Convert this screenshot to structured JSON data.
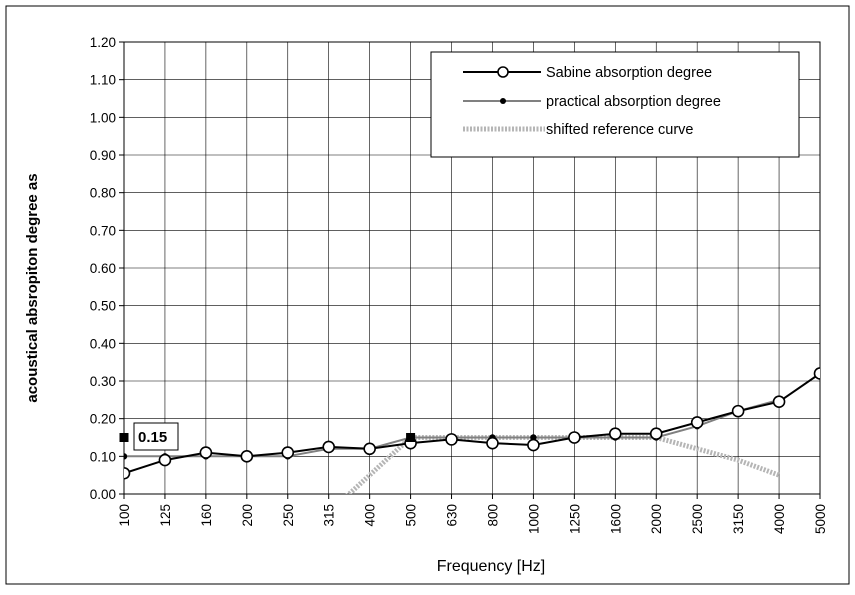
{
  "chart_data": {
    "type": "line",
    "x_axis_type": "category",
    "categories": [
      "100",
      "125",
      "160",
      "200",
      "250",
      "315",
      "400",
      "500",
      "630",
      "800",
      "1000",
      "1250",
      "1600",
      "2000",
      "2500",
      "3150",
      "4000",
      "5000"
    ],
    "xlabel": "Frequency  [Hz]",
    "ylabel": "acoustical absropiton degree as",
    "ylim": [
      0,
      1.2
    ],
    "yticks": [
      "0.00",
      "0.10",
      "0.20",
      "0.30",
      "0.40",
      "0.50",
      "0.60",
      "0.70",
      "0.80",
      "0.90",
      "1.00",
      "1.10",
      "1.20"
    ],
    "grid": true,
    "legend_position": "top-right",
    "series": [
      {
        "name": "Sabine absorption degree",
        "color": "#000000",
        "marker": "open-circle",
        "values": [
          0.055,
          0.09,
          0.11,
          0.1,
          0.11,
          0.125,
          0.12,
          0.135,
          0.145,
          0.135,
          0.13,
          0.15,
          0.16,
          0.16,
          0.19,
          0.22,
          0.245,
          0.32
        ]
      },
      {
        "name": "practical absorption degree",
        "color": "#808080",
        "marker": "dot",
        "values": [
          0.1,
          0.1,
          0.1,
          0.1,
          0.1,
          0.12,
          0.12,
          0.15,
          0.15,
          0.15,
          0.15,
          0.15,
          0.15,
          0.15,
          0.18,
          0.22,
          0.25,
          null
        ]
      },
      {
        "name": "shifted reference curve",
        "color": "#b5b5b5",
        "marker": "none",
        "values": [
          null,
          null,
          null,
          null,
          null,
          -0.05,
          0.05,
          0.15,
          0.15,
          0.15,
          0.15,
          0.15,
          0.15,
          0.15,
          0.12,
          0.09,
          0.05,
          null
        ]
      }
    ],
    "highlight_points": [
      {
        "category": "100",
        "value": 0.15
      },
      {
        "category": "500",
        "value": 0.15
      }
    ],
    "callout": {
      "text": "0.15"
    }
  }
}
